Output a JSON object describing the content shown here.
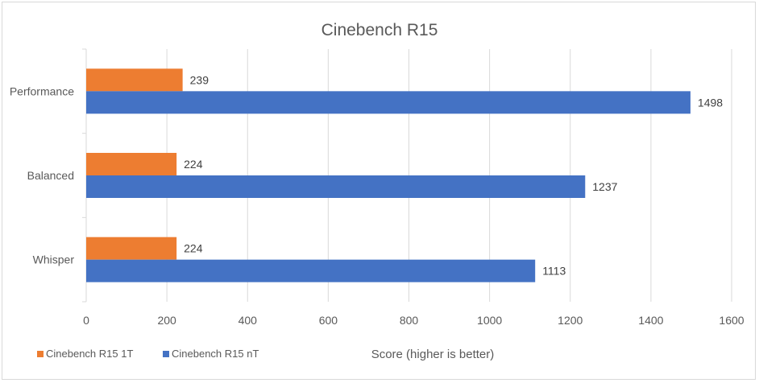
{
  "chart_data": {
    "type": "bar",
    "orientation": "horizontal",
    "title": "Cinebench R15",
    "xlabel": "Score (higher is better)",
    "ylabel": "",
    "categories": [
      "Performance",
      "Balanced",
      "Whisper"
    ],
    "series": [
      {
        "name": "Cinebench R15 1T",
        "color": "#ED7D31",
        "values": [
          239,
          224,
          224
        ]
      },
      {
        "name": "Cinebench R15 nT",
        "color": "#4472C4",
        "values": [
          1498,
          1237,
          1113
        ]
      }
    ],
    "xlim": [
      0,
      1600
    ],
    "xticks": [
      0,
      200,
      400,
      600,
      800,
      1000,
      1200,
      1400,
      1600
    ],
    "grid": "vertical",
    "legend_position": "bottom-left",
    "data_labels": true
  }
}
